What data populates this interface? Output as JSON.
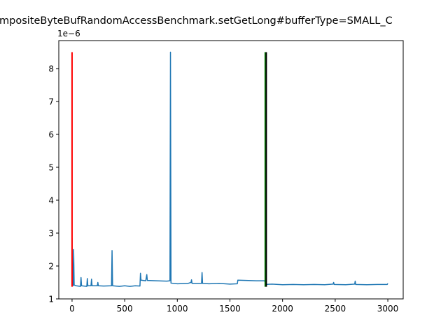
{
  "chart_data": {
    "type": "line",
    "title": "mpositeByteBufRandomAccessBenchmark.setGetLong#bufferType=SMALL_C",
    "y_offset_label": "1e−6",
    "xlim": [
      -126,
      3146
    ],
    "ylim": [
      1.0,
      8.85
    ],
    "xticks": [
      0,
      500,
      1000,
      1500,
      2000,
      2500,
      3000
    ],
    "yticks": [
      1,
      2,
      3,
      4,
      5,
      6,
      7,
      8
    ],
    "grid": false,
    "series": [
      {
        "color": "#1f77b4",
        "x": [
          0,
          5,
          10,
          15,
          20,
          40,
          80,
          85,
          90,
          140,
          145,
          150,
          180,
          185,
          190,
          240,
          245,
          250,
          300,
          375,
          380,
          385,
          450,
          500,
          550,
          600,
          645,
          650,
          655,
          700,
          710,
          715,
          800,
          900,
          930,
          935,
          940,
          1000,
          1100,
          1130,
          1135,
          1140,
          1230,
          1235,
          1240,
          1300,
          1400,
          1500,
          1570,
          1575,
          1650,
          1750,
          1830,
          1840,
          1900,
          2000,
          2100,
          2200,
          2300,
          2400,
          2480,
          2485,
          2490,
          2600,
          2685,
          2690,
          2695,
          2800,
          2900,
          2995,
          3000
        ],
        "values": [
          2.85,
          1.45,
          1.4,
          2.5,
          1.42,
          1.4,
          1.38,
          1.65,
          1.4,
          1.38,
          1.62,
          1.4,
          1.4,
          1.6,
          1.4,
          1.4,
          1.5,
          1.4,
          1.39,
          1.4,
          2.47,
          1.4,
          1.38,
          1.4,
          1.38,
          1.4,
          1.39,
          1.78,
          1.57,
          1.55,
          1.74,
          1.56,
          1.55,
          1.54,
          1.55,
          8.5,
          1.48,
          1.46,
          1.47,
          1.5,
          1.58,
          1.47,
          1.47,
          1.8,
          1.47,
          1.46,
          1.47,
          1.45,
          1.46,
          1.57,
          1.56,
          1.55,
          1.55,
          1.44,
          1.45,
          1.43,
          1.44,
          1.43,
          1.44,
          1.43,
          1.45,
          1.5,
          1.44,
          1.43,
          1.45,
          1.54,
          1.44,
          1.43,
          1.44,
          1.44,
          1.47
        ]
      }
    ],
    "vlines": [
      {
        "x": 0,
        "ymin": 1.37,
        "ymax": 8.5,
        "color": "#ff0000"
      },
      {
        "x": 1835,
        "ymin": 1.37,
        "ymax": 8.5,
        "color": "#008000"
      },
      {
        "x": 1845,
        "ymin": 1.37,
        "ymax": 8.5,
        "color": "#000000"
      }
    ]
  }
}
